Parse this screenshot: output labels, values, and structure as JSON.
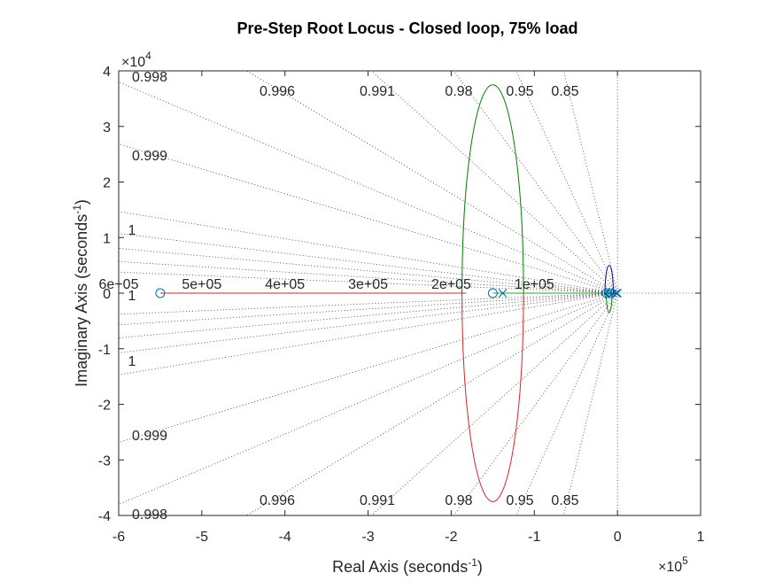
{
  "chart_data": {
    "type": "root-locus",
    "title": "Pre-Step Root Locus - Closed loop, 75% load",
    "xlabel": {
      "base": "Real Axis (seconds",
      "sup": "-1",
      "end": ")"
    },
    "ylabel": {
      "base": "Imaginary Axis (seconds",
      "sup": "-1",
      "end": ")"
    },
    "x_scale_factor": {
      "base": "×10",
      "exp": "5"
    },
    "y_scale_factor": {
      "base": "×10",
      "exp": "4"
    },
    "xlim": [
      -600000,
      100000
    ],
    "ylim": [
      -40000,
      40000
    ],
    "x_ticks": [
      -600000,
      -500000,
      -400000,
      -300000,
      -200000,
      -100000,
      0,
      100000
    ],
    "x_tick_labels": [
      "-6",
      "-5",
      "-4",
      "-3",
      "-2",
      "-1",
      "0",
      "1"
    ],
    "y_ticks": [
      -40000,
      -30000,
      -20000,
      -10000,
      0,
      10000,
      20000,
      30000,
      40000
    ],
    "y_tick_labels": [
      "-4",
      "-3",
      "-2",
      "-1",
      "0",
      "1",
      "2",
      "3",
      "4"
    ],
    "grid": true,
    "damping_lines": [
      0.85,
      0.95,
      0.98,
      0.991,
      0.996,
      0.998,
      0.999,
      0.9997,
      0.99984,
      0.99991,
      0.999955,
      0.99998
    ],
    "damping_labels_top": [
      {
        "value": 0.998,
        "text": "0.998"
      },
      {
        "value": 0.996,
        "text": "0.996"
      },
      {
        "value": 0.991,
        "text": "0.991"
      },
      {
        "value": 0.98,
        "text": "0.98"
      },
      {
        "value": 0.95,
        "text": "0.95"
      },
      {
        "value": 0.85,
        "text": "0.85"
      }
    ],
    "damping_labels_left": [
      {
        "value": 0.999,
        "text": "0.999"
      },
      {
        "value": 0.9999,
        "text": "1"
      }
    ],
    "damping_labels_bottom": [
      {
        "value": 0.998,
        "text": "0.998"
      },
      {
        "value": 0.996,
        "text": "0.996"
      },
      {
        "value": 0.991,
        "text": "0.991"
      },
      {
        "value": 0.98,
        "text": "0.98"
      },
      {
        "value": 0.95,
        "text": "0.95"
      },
      {
        "value": 0.85,
        "text": "0.85"
      }
    ],
    "damping_labels_lower_left": [
      {
        "value": 0.9999,
        "text": "1"
      },
      {
        "value": 0.999,
        "text": "0.999"
      }
    ],
    "axis_center_label": "1",
    "frequency_labels": [
      {
        "value": 600000,
        "text": "6e+05"
      },
      {
        "value": 500000,
        "text": "5e+05"
      },
      {
        "value": 400000,
        "text": "4e+05"
      },
      {
        "value": 300000,
        "text": "3e+05"
      },
      {
        "value": 200000,
        "text": "2e+05"
      },
      {
        "value": 100000,
        "text": "1e+05"
      }
    ],
    "zeros": [
      [
        -550000,
        0
      ],
      [
        -150000,
        0
      ],
      [
        -13000,
        0
      ],
      [
        -8000,
        0
      ]
    ],
    "poles": [
      [
        -138000,
        0
      ],
      [
        -10000,
        0
      ],
      [
        -1500,
        0
      ],
      [
        0,
        0
      ]
    ],
    "branches": [
      {
        "color": "#d62728",
        "kind": "segment",
        "points": [
          [
            -550000,
            0
          ],
          [
            -182000,
            0
          ]
        ]
      },
      {
        "color": "#2ca02c",
        "kind": "segment",
        "points": [
          [
            -150000,
            0
          ],
          [
            0,
            0
          ]
        ]
      },
      {
        "color": "#d62728",
        "kind": "ellipse-lower",
        "center": [
          -150000,
          0
        ],
        "rx": 37000,
        "ry": 37500
      },
      {
        "color": "#008000",
        "kind": "ellipse-upper",
        "center": [
          -150000,
          0
        ],
        "rx": 37000,
        "ry": 37500
      },
      {
        "color": "#0000aa",
        "kind": "ellipse-upper",
        "center": [
          -10000,
          0
        ],
        "rx": 5000,
        "ry": 5000
      },
      {
        "color": "#0000aa",
        "kind": "ellipse-lower",
        "center": [
          -10000,
          0
        ],
        "rx": 5000,
        "ry": 500
      },
      {
        "color": "#008000",
        "kind": "ellipse-lower",
        "center": [
          -10000,
          0
        ],
        "rx": 3500,
        "ry": 3500
      },
      {
        "color": "#008000",
        "kind": "ellipse-upper",
        "center": [
          -10000,
          0
        ],
        "rx": 3500,
        "ry": 400
      }
    ],
    "marker_color": "#0072bd"
  }
}
